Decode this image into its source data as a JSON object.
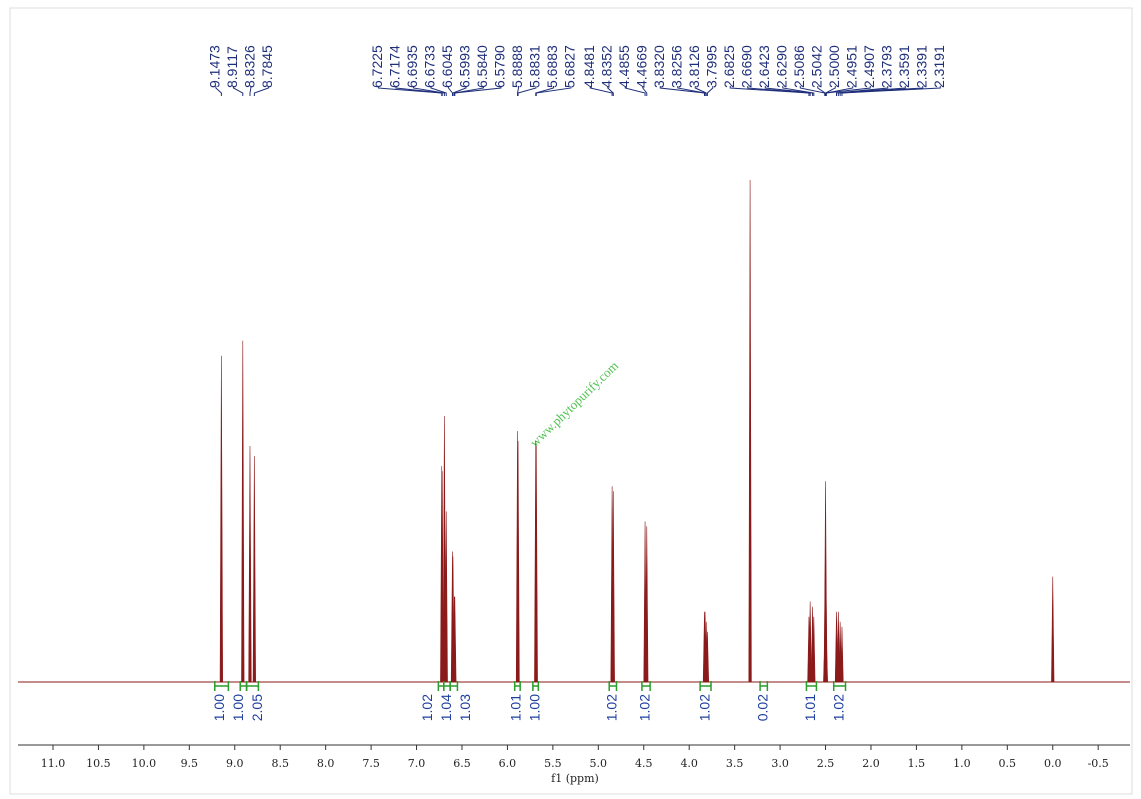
{
  "chart_data": {
    "type": "nmr",
    "xlabel": "f1 (ppm)",
    "watermark": "www.phytopurify.com",
    "xlim": [
      11.385,
      -0.85
    ],
    "xticks": [
      {
        "value": 11,
        "label": "11.0"
      },
      10.5,
      {
        "value": 10,
        "label": "10.0"
      },
      9.5,
      {
        "value": 9,
        "label": "9.0"
      },
      8.5,
      {
        "value": 8,
        "label": "8.0"
      },
      7.5,
      {
        "value": 7,
        "label": "7.0"
      },
      6.5,
      {
        "value": 6,
        "label": "6.0"
      },
      5.5,
      {
        "value": 5,
        "label": "5.0"
      },
      4.5,
      {
        "value": 4,
        "label": "4.0"
      },
      3.5,
      {
        "value": 3,
        "label": "3.0"
      },
      2.5,
      {
        "value": 2,
        "label": "2.0"
      },
      1.5,
      {
        "value": 1,
        "label": "1.0"
      },
      0.5,
      {
        "value": 0,
        "label": "0.0"
      },
      -0.5
    ],
    "color": "#8b1a1a",
    "peaks": {
      "x": [
        9.1473,
        8.9117,
        8.8326,
        8.7845,
        6.7225,
        6.7174,
        6.6935,
        6.6733,
        6.6045,
        6.5993,
        6.584,
        6.579,
        5.8888,
        5.8831,
        5.6883,
        5.6827,
        4.8481,
        4.8352,
        4.4855,
        4.4669,
        3.832,
        3.8256,
        3.8126,
        3.7995,
        3.33,
        2.6825,
        2.669,
        2.6423,
        2.629,
        2.5086,
        2.5042,
        2.5,
        2.4951,
        2.4907,
        2.3793,
        2.3591,
        2.3391,
        2.3191,
        0
      ],
      "x_labels": [
        "9.1473",
        "8.9117",
        "8.8326",
        "8.7845",
        "6.7225",
        "6.7174",
        "6.6935",
        "6.6733",
        "6.6045",
        "6.5993",
        "6.5840",
        "6.5790",
        "5.8888",
        "5.8831",
        "5.6883",
        "5.6827",
        "4.8481",
        "4.8352",
        "4.4855",
        "4.4669",
        "3.8320",
        "3.8256",
        "3.8126",
        "3.7995",
        null,
        "2.6825",
        "2.6690",
        "2.6423",
        "2.6290",
        "2.5086",
        "2.5042",
        "2.5000",
        "2.4951",
        "2.4907",
        "2.3793",
        "2.3591",
        "2.3391",
        "2.3191",
        null
      ],
      "values": [
        65,
        68,
        47,
        45,
        43,
        42,
        53,
        34,
        26,
        25,
        17,
        17,
        50,
        48,
        48,
        47,
        39,
        38,
        32,
        31,
        14,
        14,
        12,
        10,
        100,
        13,
        16,
        15,
        13,
        8,
        20,
        40,
        20,
        8,
        14,
        14,
        12,
        11,
        21
      ]
    },
    "integrals": {
      "from": [
        9.22,
        8.94,
        8.87,
        6.76,
        6.7,
        6.63,
        5.92,
        5.72,
        4.88,
        4.52,
        3.88,
        3.22,
        2.71,
        2.41
      ],
      "to": [
        9.07,
        8.87,
        8.74,
        6.7,
        6.63,
        6.55,
        5.86,
        5.66,
        4.8,
        4.43,
        3.76,
        3.14,
        2.6,
        2.28
      ],
      "values": [
        1,
        1,
        2.05,
        1.02,
        1.04,
        1.03,
        1.01,
        1,
        1.02,
        1.02,
        1.02,
        0.02,
        1.01,
        1.02
      ],
      "value_labels": [
        "1.00",
        "1.00",
        "2.05",
        "1.02",
        "1.04",
        "1.03",
        "1.01",
        "1.00",
        "1.02",
        "1.02",
        "1.02",
        "0.02",
        "1.01",
        "1.02"
      ],
      "color": "#2a9d2a"
    }
  }
}
